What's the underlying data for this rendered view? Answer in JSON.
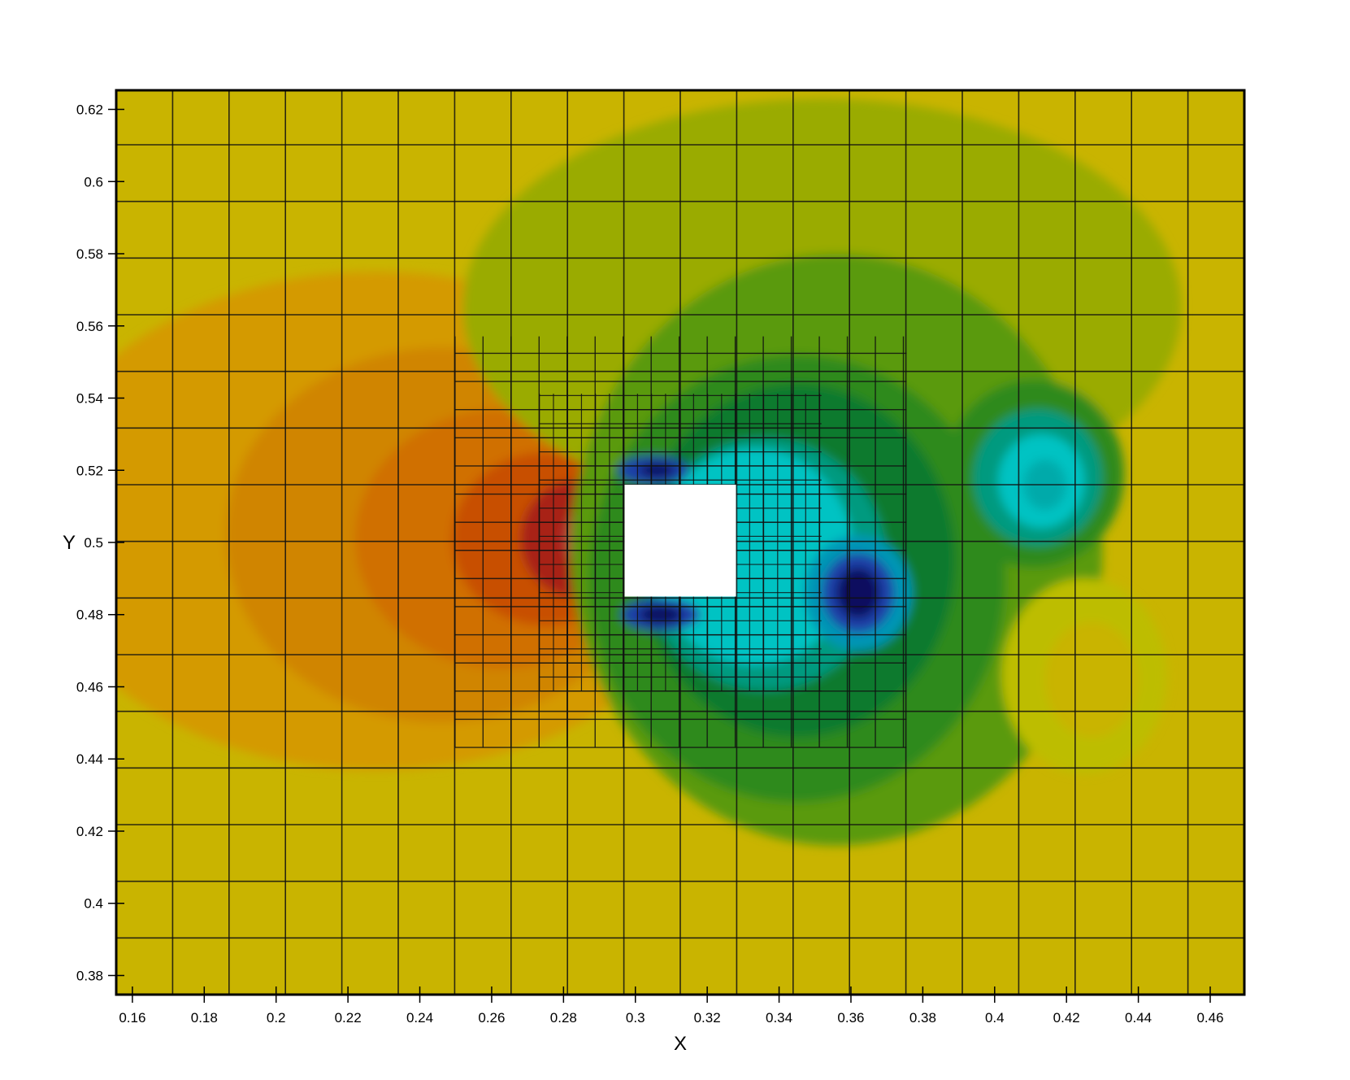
{
  "chart_data": {
    "type": "heatmap",
    "title": "",
    "xlabel": "X",
    "ylabel": "Y",
    "xlim": [
      0.1555,
      0.4695
    ],
    "ylim": [
      0.3747,
      0.6253
    ],
    "grid": true,
    "legend": "none",
    "x_ticks": [
      0.16,
      0.18,
      0.2,
      0.22,
      0.24,
      0.26,
      0.28,
      0.3,
      0.32,
      0.34,
      0.36,
      0.38,
      0.4,
      0.42,
      0.44,
      0.46
    ],
    "y_ticks": [
      0.38,
      0.4,
      0.42,
      0.44,
      0.46,
      0.48,
      0.5,
      0.52,
      0.54,
      0.56,
      0.58,
      0.6,
      0.62
    ],
    "x_tick_labels": [
      "0.16",
      "0.18",
      "0.2",
      "0.22",
      "0.24",
      "0.26",
      "0.28",
      "0.3",
      "0.32",
      "0.34",
      "0.36",
      "0.38",
      "0.4",
      "0.42",
      "0.44",
      "0.46"
    ],
    "y_tick_labels": [
      "0.38",
      "0.4",
      "0.42",
      "0.44",
      "0.46",
      "0.48",
      "0.5",
      "0.52",
      "0.54",
      "0.56",
      "0.58",
      "0.6",
      "0.62"
    ],
    "obstacle": {
      "x": [
        0.297,
        0.328
      ],
      "y": [
        0.485,
        0.516
      ]
    },
    "mesh": {
      "coarse": {
        "x0": 0.1555,
        "x1": 0.4695,
        "y0": 0.3747,
        "y1": 0.6253,
        "dx": 0.0157,
        "dy": 0.0157
      },
      "level1": {
        "x0": 0.2498,
        "x1": 0.3755,
        "y0": 0.4432,
        "y1": 0.5571,
        "dx": 0.0078,
        "dy": 0.0078
      },
      "level2": {
        "x0": 0.2733,
        "x1": 0.3518,
        "y0": 0.4588,
        "y1": 0.5412,
        "dx": 0.0039,
        "dy": 0.0039
      }
    },
    "colormap": {
      "background": "#c9b400",
      "stops": [
        "#0a0a5e",
        "#1f3fa8",
        "#0095b5",
        "#00c3c3",
        "#009a7f",
        "#2f8a1f",
        "#5a9a10",
        "#9aab00",
        "#bdbd00",
        "#c9b400",
        "#d49a00",
        "#d07000",
        "#c85000",
        "#a82418",
        "#7a1010"
      ]
    },
    "regions": [
      {
        "x": 0.228,
        "y": 0.506,
        "rx": 0.097,
        "ry": 0.069,
        "color": "#d49a00"
      },
      {
        "x": 0.246,
        "y": 0.502,
        "rx": 0.06,
        "ry": 0.052,
        "color": "#d08500"
      },
      {
        "x": 0.263,
        "y": 0.501,
        "rx": 0.041,
        "ry": 0.036,
        "color": "#d07000"
      },
      {
        "x": 0.275,
        "y": 0.501,
        "rx": 0.026,
        "ry": 0.024,
        "color": "#c85000"
      },
      {
        "x": 0.283,
        "y": 0.501,
        "rx": 0.015,
        "ry": 0.016,
        "color": "#a82418"
      },
      {
        "x": 0.289,
        "y": 0.501,
        "rx": 0.009,
        "ry": 0.01,
        "color": "#b84040"
      },
      {
        "x": 0.352,
        "y": 0.565,
        "rx": 0.1,
        "ry": 0.058,
        "color": "#9aab00"
      },
      {
        "x": 0.356,
        "y": 0.498,
        "rx": 0.074,
        "ry": 0.082,
        "color": "#5a9a10"
      },
      {
        "x": 0.345,
        "y": 0.49,
        "rx": 0.058,
        "ry": 0.062,
        "color": "#2f8a1f"
      },
      {
        "x": 0.345,
        "y": 0.495,
        "rx": 0.044,
        "ry": 0.049,
        "color": "#0e7a2e"
      },
      {
        "x": 0.336,
        "y": 0.494,
        "rx": 0.034,
        "ry": 0.035,
        "color": "#009a7f"
      },
      {
        "x": 0.333,
        "y": 0.496,
        "rx": 0.028,
        "ry": 0.03,
        "color": "#00c3c3"
      },
      {
        "x": 0.411,
        "y": 0.519,
        "rx": 0.025,
        "ry": 0.026,
        "color": "#2f8a1f"
      },
      {
        "x": 0.412,
        "y": 0.518,
        "rx": 0.018,
        "ry": 0.019,
        "color": "#009a7f"
      },
      {
        "x": 0.413,
        "y": 0.517,
        "rx": 0.012,
        "ry": 0.013,
        "color": "#00c3c3"
      },
      {
        "x": 0.414,
        "y": 0.516,
        "rx": 0.006,
        "ry": 0.007,
        "color": "#00aaaa"
      },
      {
        "x": 0.425,
        "y": 0.463,
        "rx": 0.023,
        "ry": 0.027,
        "color": "#bdbd00"
      },
      {
        "x": 0.427,
        "y": 0.462,
        "rx": 0.013,
        "ry": 0.016,
        "color": "#c9b400"
      },
      {
        "x": 0.362,
        "y": 0.486,
        "rx": 0.015,
        "ry": 0.016,
        "color": "#0095b5"
      },
      {
        "x": 0.362,
        "y": 0.486,
        "rx": 0.01,
        "ry": 0.011,
        "color": "#1f3fa8"
      },
      {
        "x": 0.362,
        "y": 0.486,
        "rx": 0.006,
        "ry": 0.007,
        "color": "#0a0a5e"
      },
      {
        "x": 0.305,
        "y": 0.52,
        "rx": 0.01,
        "ry": 0.004,
        "color": "#1f3fa8"
      },
      {
        "x": 0.306,
        "y": 0.52,
        "rx": 0.005,
        "ry": 0.002,
        "color": "#0a0a5e"
      },
      {
        "x": 0.307,
        "y": 0.48,
        "rx": 0.011,
        "ry": 0.0045,
        "color": "#1f3fa8"
      },
      {
        "x": 0.307,
        "y": 0.48,
        "rx": 0.006,
        "ry": 0.0025,
        "color": "#0a0a5e"
      }
    ]
  }
}
